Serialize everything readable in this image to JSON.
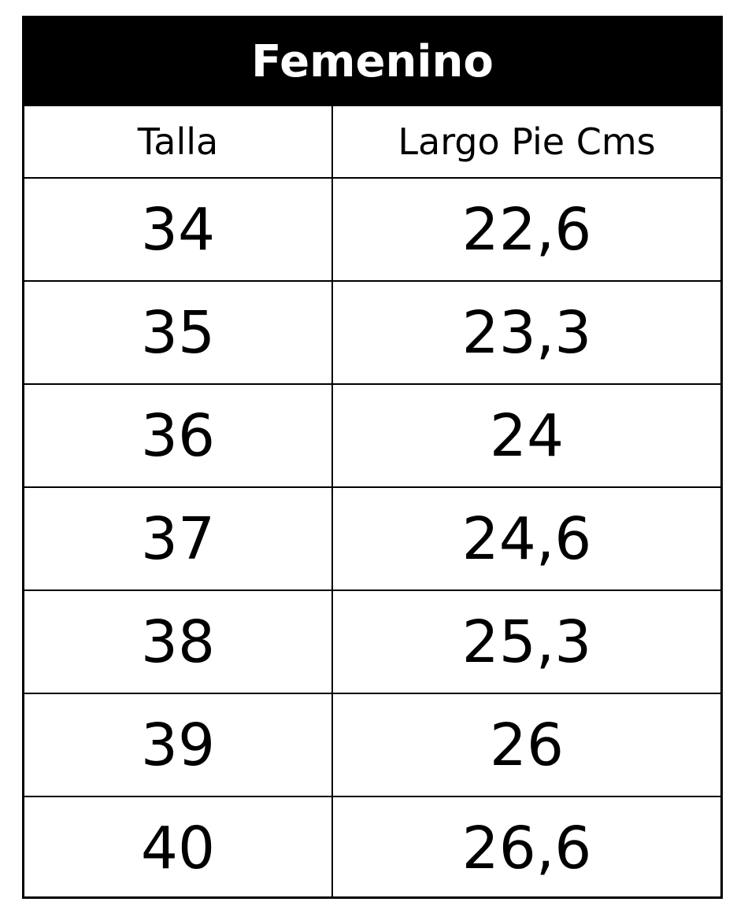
{
  "title": "Femenino",
  "columns": [
    "Talla",
    "Largo Pie Cms"
  ],
  "rows": [
    [
      "34",
      "22,6"
    ],
    [
      "35",
      "23,3"
    ],
    [
      "36",
      "24"
    ],
    [
      "37",
      "24,6"
    ],
    [
      "38",
      "25,3"
    ],
    [
      "39",
      "26"
    ],
    [
      "40",
      "26,6"
    ]
  ]
}
